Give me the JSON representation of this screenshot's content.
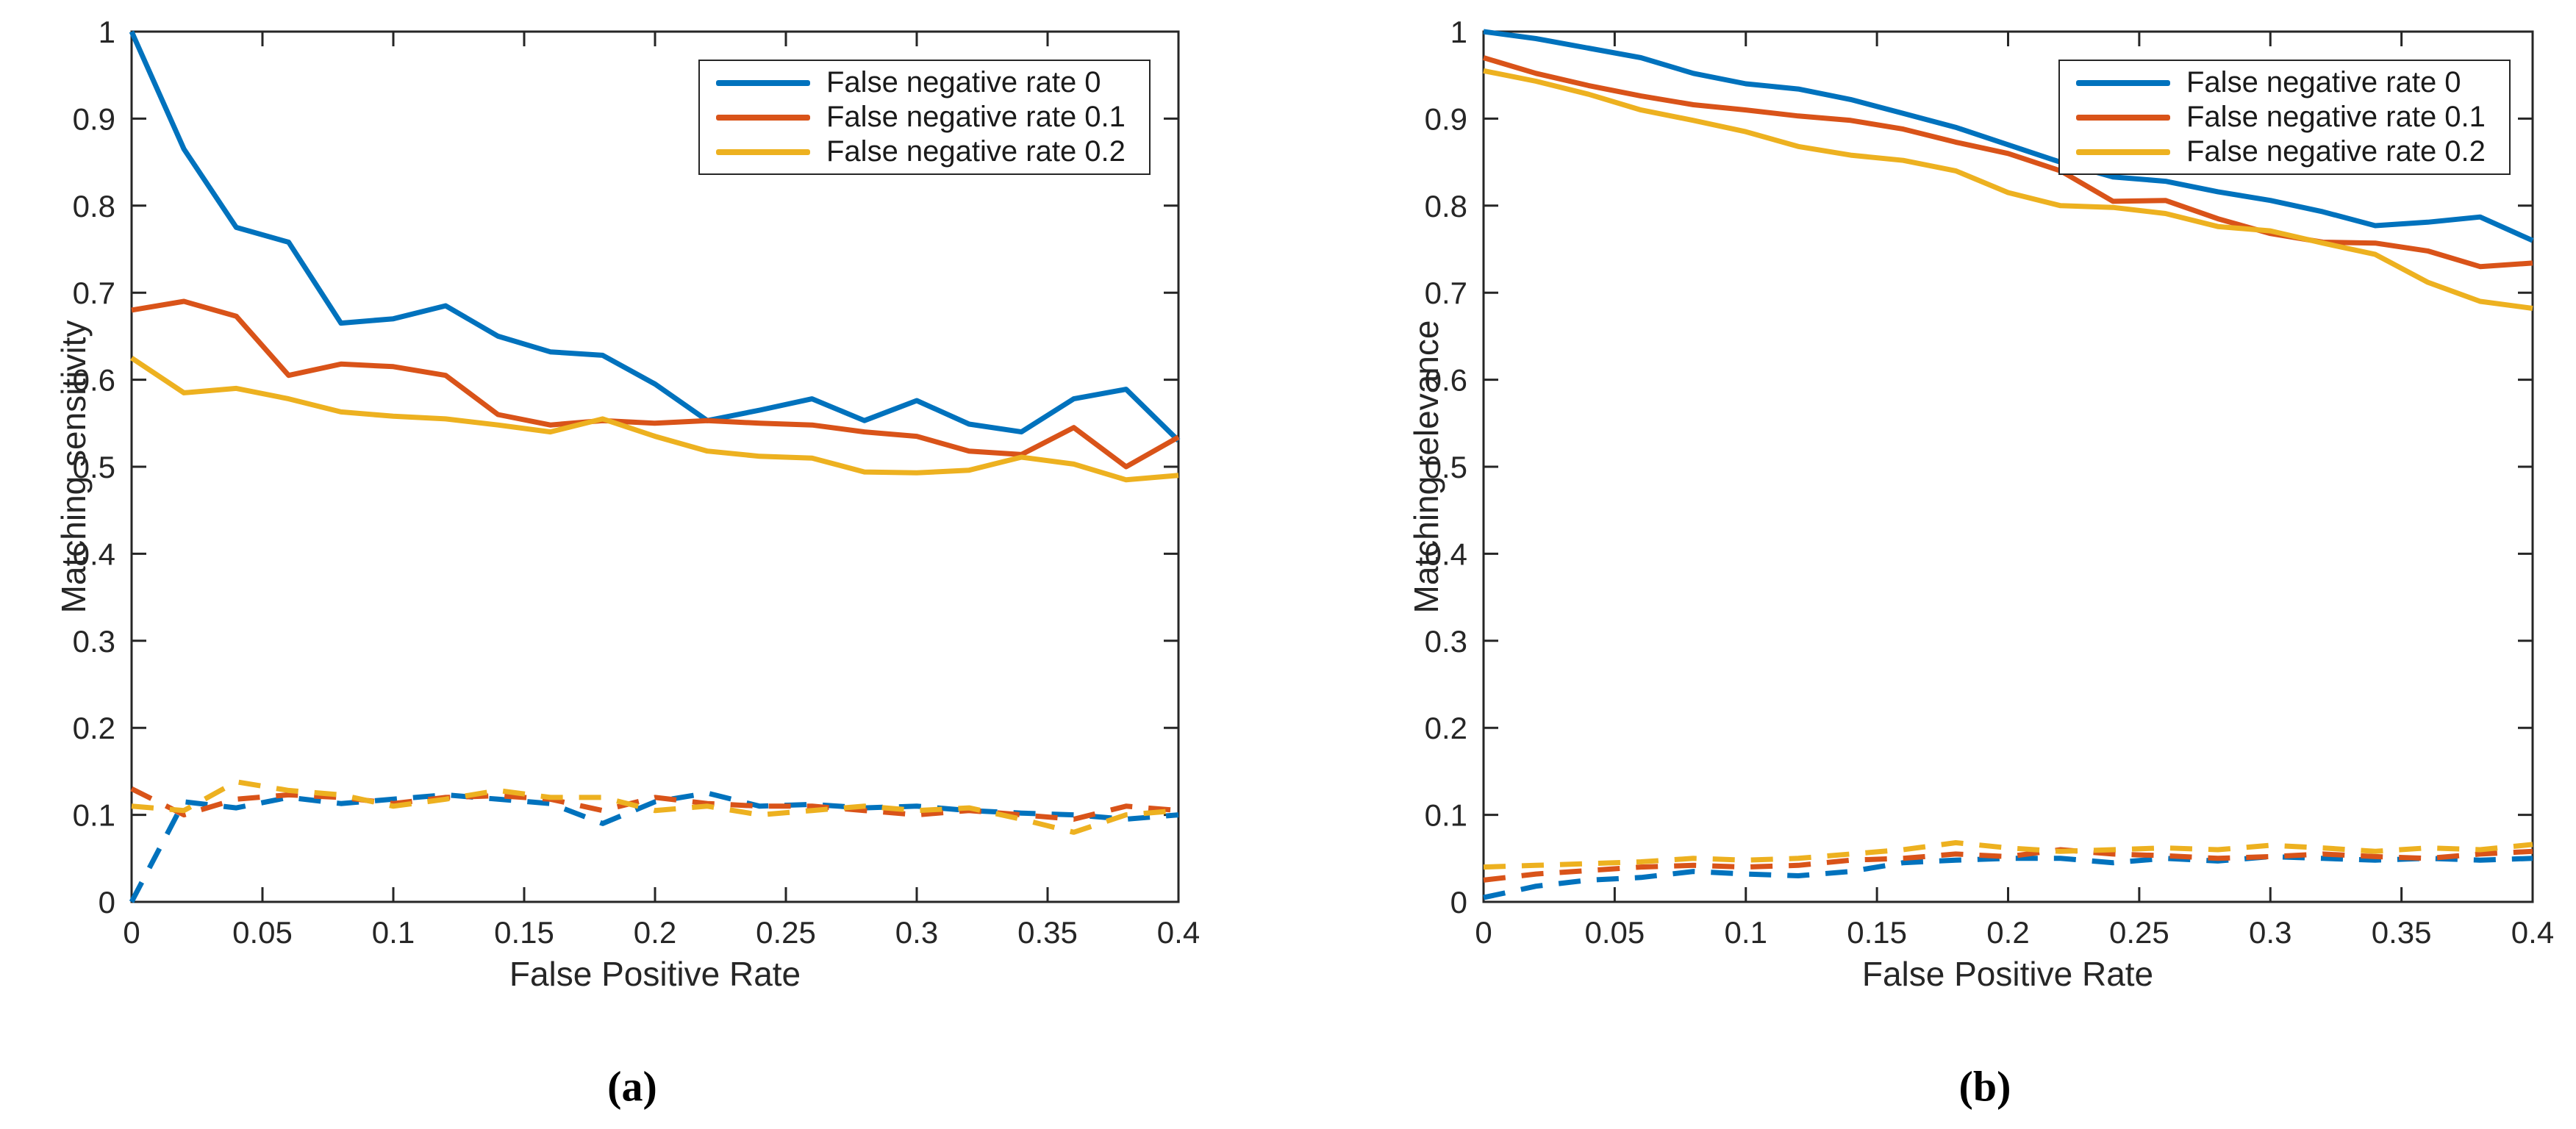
{
  "figure": {
    "background": "#ffffff"
  },
  "colors": {
    "axis": "#262626",
    "blue": "#0072BD",
    "red": "#D95319",
    "yellow": "#EDB120"
  },
  "chart_data": {
    "type": "line",
    "x": [
      0,
      0.02,
      0.04,
      0.06,
      0.08,
      0.1,
      0.12,
      0.14,
      0.16,
      0.18,
      0.2,
      0.22,
      0.24,
      0.26,
      0.28,
      0.3,
      0.32,
      0.34,
      0.36,
      0.38,
      0.4
    ],
    "panels": [
      {
        "id": "a",
        "caption": "(a)",
        "xlabel": "False Positive Rate",
        "ylabel": "Matching sensitivity",
        "xlim": [
          0,
          0.4
        ],
        "ylim": [
          0,
          1
        ],
        "grid": false,
        "legend_position": "northeast",
        "xticks": [
          "0",
          "0.05",
          "0.1",
          "0.15",
          "0.2",
          "0.25",
          "0.3",
          "0.35",
          "0.4"
        ],
        "yticks": [
          "0",
          "0.1",
          "0.2",
          "0.3",
          "0.4",
          "0.5",
          "0.6",
          "0.7",
          "0.8",
          "0.9",
          "1"
        ],
        "legend": [
          "False negative rate 0",
          "False negative rate 0.1",
          "False negative rate 0.2"
        ],
        "series": [
          {
            "line_id": "fnr0-solid",
            "color": "blue",
            "style": "solid",
            "values": [
              1.0,
              0.865,
              0.775,
              0.758,
              0.665,
              0.67,
              0.685,
              0.65,
              0.632,
              0.628,
              0.595,
              0.553,
              0.565,
              0.578,
              0.553,
              0.576,
              0.549,
              0.54,
              0.578,
              0.589,
              0.53
            ]
          },
          {
            "line_id": "fnr01-solid",
            "color": "red",
            "style": "solid",
            "values": [
              0.68,
              0.69,
              0.673,
              0.605,
              0.618,
              0.615,
              0.605,
              0.56,
              0.548,
              0.553,
              0.55,
              0.553,
              0.55,
              0.548,
              0.54,
              0.535,
              0.518,
              0.514,
              0.545,
              0.5,
              0.534
            ]
          },
          {
            "line_id": "fnr02-solid",
            "color": "yellow",
            "style": "solid",
            "values": [
              0.625,
              0.585,
              0.59,
              0.578,
              0.563,
              0.558,
              0.555,
              0.548,
              0.54,
              0.555,
              0.535,
              0.518,
              0.512,
              0.51,
              0.494,
              0.493,
              0.496,
              0.511,
              0.503,
              0.485,
              0.49
            ]
          },
          {
            "line_id": "fnr0-dashed",
            "color": "blue",
            "style": "dashed",
            "values": [
              0.0,
              0.115,
              0.108,
              0.12,
              0.113,
              0.118,
              0.123,
              0.118,
              0.113,
              0.09,
              0.115,
              0.125,
              0.11,
              0.112,
              0.108,
              0.11,
              0.105,
              0.102,
              0.1,
              0.095,
              0.1
            ]
          },
          {
            "line_id": "fnr01-dashed",
            "color": "red",
            "style": "dashed",
            "values": [
              0.13,
              0.1,
              0.118,
              0.123,
              0.12,
              0.113,
              0.12,
              0.122,
              0.118,
              0.105,
              0.12,
              0.113,
              0.11,
              0.11,
              0.105,
              0.1,
              0.105,
              0.1,
              0.095,
              0.11,
              0.105
            ]
          },
          {
            "line_id": "fnr02-dashed",
            "color": "yellow",
            "style": "dashed",
            "values": [
              0.11,
              0.105,
              0.138,
              0.128,
              0.123,
              0.11,
              0.118,
              0.128,
              0.12,
              0.12,
              0.105,
              0.11,
              0.1,
              0.105,
              0.11,
              0.105,
              0.108,
              0.095,
              0.08,
              0.1,
              0.105
            ]
          }
        ]
      },
      {
        "id": "b",
        "caption": "(b)",
        "xlabel": "False Positive Rate",
        "ylabel": "Matching relevance",
        "xlim": [
          0,
          0.4
        ],
        "ylim": [
          0,
          1
        ],
        "grid": false,
        "legend_position": "northeast",
        "xticks": [
          "0",
          "0.05",
          "0.1",
          "0.15",
          "0.2",
          "0.25",
          "0.3",
          "0.35",
          "0.4"
        ],
        "yticks": [
          "0",
          "0.1",
          "0.2",
          "0.3",
          "0.4",
          "0.5",
          "0.6",
          "0.7",
          "0.8",
          "0.9",
          "1"
        ],
        "legend": [
          "False negative rate 0",
          "False negative rate 0.1",
          "False negative rate 0.2"
        ],
        "series": [
          {
            "line_id": "fnr0-solid",
            "color": "blue",
            "style": "solid",
            "values": [
              1.0,
              0.992,
              0.981,
              0.97,
              0.952,
              0.94,
              0.934,
              0.922,
              0.906,
              0.89,
              0.87,
              0.85,
              0.833,
              0.828,
              0.816,
              0.806,
              0.793,
              0.777,
              0.781,
              0.787,
              0.76
            ]
          },
          {
            "line_id": "fnr01-solid",
            "color": "red",
            "style": "solid",
            "values": [
              0.97,
              0.952,
              0.938,
              0.926,
              0.916,
              0.91,
              0.903,
              0.898,
              0.888,
              0.873,
              0.86,
              0.84,
              0.805,
              0.806,
              0.785,
              0.768,
              0.758,
              0.757,
              0.748,
              0.73,
              0.734
            ]
          },
          {
            "line_id": "fnr02-solid",
            "color": "yellow",
            "style": "solid",
            "values": [
              0.955,
              0.943,
              0.928,
              0.91,
              0.898,
              0.885,
              0.868,
              0.858,
              0.852,
              0.84,
              0.815,
              0.8,
              0.798,
              0.791,
              0.776,
              0.771,
              0.757,
              0.744,
              0.712,
              0.69,
              0.682
            ]
          },
          {
            "line_id": "fnr0-dashed",
            "color": "blue",
            "style": "dashed",
            "values": [
              0.005,
              0.018,
              0.025,
              0.028,
              0.035,
              0.032,
              0.03,
              0.035,
              0.045,
              0.048,
              0.05,
              0.05,
              0.045,
              0.05,
              0.047,
              0.052,
              0.05,
              0.048,
              0.05,
              0.048,
              0.05
            ]
          },
          {
            "line_id": "fnr01-dashed",
            "color": "red",
            "style": "dashed",
            "values": [
              0.025,
              0.032,
              0.036,
              0.04,
              0.042,
              0.04,
              0.042,
              0.048,
              0.05,
              0.055,
              0.052,
              0.06,
              0.055,
              0.053,
              0.05,
              0.052,
              0.055,
              0.052,
              0.05,
              0.055,
              0.058
            ]
          },
          {
            "line_id": "fnr02-dashed",
            "color": "yellow",
            "style": "dashed",
            "values": [
              0.04,
              0.042,
              0.044,
              0.046,
              0.05,
              0.048,
              0.05,
              0.055,
              0.06,
              0.068,
              0.062,
              0.058,
              0.06,
              0.062,
              0.06,
              0.065,
              0.062,
              0.058,
              0.062,
              0.06,
              0.066
            ]
          }
        ]
      }
    ]
  }
}
